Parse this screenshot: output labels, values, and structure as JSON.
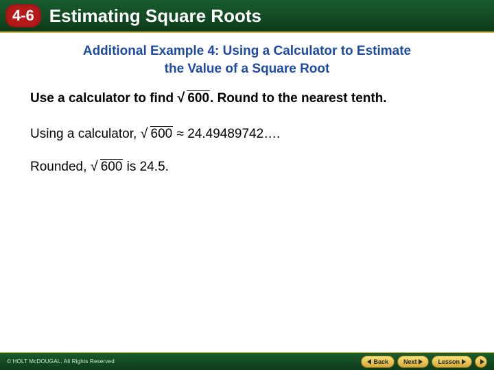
{
  "header": {
    "chapter": "4-6",
    "title": "Estimating Square Roots",
    "bg_gradient_top": "#1a5c2e",
    "bg_gradient_bottom": "#0d3b1a",
    "chapter_bg": "#b51a1a",
    "title_color": "#ffffff"
  },
  "example": {
    "title_line1": "Additional Example 4: Using a Calculator to Estimate",
    "title_line2": "the Value of a Square Root",
    "title_color": "#1e4aa0"
  },
  "problem": {
    "prefix": "Use a calculator to find ",
    "radicand": "600",
    "suffix": ". Round to the nearest tenth."
  },
  "step1": {
    "prefix": "Using a calculator, ",
    "radicand": "600",
    "approx": " ≈ 24.49489742…."
  },
  "step2": {
    "prefix": "Rounded, ",
    "radicand": "600",
    "suffix": " is 24.5."
  },
  "footer": {
    "copyright": "© HOLT McDOUGAL. All Rights Reserved",
    "buttons": {
      "back": "Back",
      "next": "Next",
      "lesson": "Lesson"
    },
    "btn_bg_top": "#f8e37a",
    "btn_bg_bottom": "#d4a83a"
  }
}
